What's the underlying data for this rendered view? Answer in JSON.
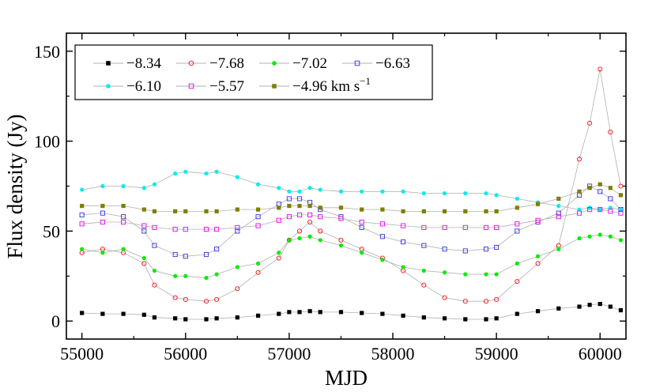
{
  "chart_data": {
    "type": "scatter",
    "xlabel": "MJD",
    "ylabel": "Flux density (Jy)",
    "xlim": [
      54850,
      60250
    ],
    "ylim": [
      -10,
      160
    ],
    "x_ticks": [
      55000,
      56000,
      57000,
      58000,
      59000,
      60000
    ],
    "y_ticks": [
      0,
      50,
      100,
      150
    ],
    "grid": false,
    "legend_position": "top-left",
    "legend_unit": "km s",
    "legend_unit_sup": "−1",
    "series": [
      {
        "name": "−8.34",
        "color": "#000000",
        "marker": "filled-square",
        "x": [
          55000,
          55200,
          55400,
          55600,
          55700,
          55900,
          56000,
          56200,
          56300,
          56500,
          56700,
          56900,
          57000,
          57100,
          57200,
          57300,
          57500,
          57700,
          57900,
          58100,
          58300,
          58500,
          58700,
          58900,
          59000,
          59200,
          59400,
          59600,
          59800,
          59900,
          60000,
          60100,
          60200
        ],
        "values": [
          4.5,
          4,
          4,
          3.5,
          2,
          1.5,
          1,
          1,
          1.5,
          2,
          3,
          4,
          5,
          5,
          5.5,
          5,
          5,
          4.5,
          4,
          3,
          2,
          1.5,
          1,
          1,
          1.5,
          4,
          5.5,
          7,
          8,
          9,
          9.5,
          8,
          6
        ]
      },
      {
        "name": "−7.68",
        "color": "#ee1111",
        "marker": "open-circle",
        "x": [
          55000,
          55200,
          55400,
          55600,
          55700,
          55900,
          56000,
          56200,
          56300,
          56500,
          56700,
          56900,
          57000,
          57100,
          57200,
          57300,
          57500,
          57700,
          57900,
          58100,
          58300,
          58500,
          58700,
          58900,
          59000,
          59200,
          59400,
          59600,
          59800,
          59900,
          60000,
          60100,
          60200
        ],
        "values": [
          38,
          40,
          38,
          32,
          20,
          13,
          12,
          11,
          12,
          18,
          27,
          35,
          45,
          50,
          55,
          50,
          45,
          40,
          35,
          28,
          20,
          13,
          11,
          11,
          12,
          22,
          32,
          42,
          90,
          110,
          140,
          105,
          75
        ]
      },
      {
        "name": "−7.02",
        "color": "#00ee00",
        "marker": "filled-circle",
        "x": [
          55000,
          55200,
          55400,
          55600,
          55700,
          55900,
          56000,
          56200,
          56300,
          56500,
          56700,
          56900,
          57000,
          57100,
          57200,
          57300,
          57500,
          57700,
          57900,
          58100,
          58300,
          58500,
          58700,
          58900,
          59000,
          59200,
          59400,
          59600,
          59800,
          59900,
          60000,
          60100,
          60200
        ],
        "values": [
          40,
          38,
          40,
          35,
          28,
          25,
          25,
          24,
          26,
          30,
          32,
          38,
          45,
          46,
          47,
          45,
          42,
          38,
          34,
          30,
          28,
          27,
          26,
          26,
          26,
          32,
          36,
          40,
          46,
          47,
          48,
          47,
          45
        ]
      },
      {
        "name": "−6.63",
        "color": "#3333dd",
        "marker": "open-square",
        "x": [
          55000,
          55200,
          55400,
          55600,
          55700,
          55900,
          56000,
          56200,
          56300,
          56500,
          56700,
          56900,
          57000,
          57100,
          57200,
          57300,
          57500,
          57700,
          57900,
          58100,
          58300,
          58500,
          58700,
          58900,
          59000,
          59200,
          59400,
          59600,
          59800,
          59900,
          60000,
          60100,
          60200
        ],
        "values": [
          59,
          60,
          58,
          50,
          42,
          37,
          36,
          37,
          40,
          50,
          58,
          65,
          68,
          68,
          66,
          62,
          58,
          52,
          47,
          44,
          42,
          40,
          39,
          40,
          41,
          50,
          55,
          60,
          70,
          75,
          72,
          68,
          62
        ]
      },
      {
        "name": "−6.10",
        "color": "#00eeee",
        "marker": "filled-circle",
        "x": [
          55000,
          55200,
          55400,
          55600,
          55700,
          55900,
          56000,
          56200,
          56300,
          56500,
          56700,
          56900,
          57000,
          57100,
          57200,
          57300,
          57500,
          57700,
          57900,
          58100,
          58300,
          58500,
          58700,
          58900,
          59000,
          59200,
          59400,
          59600,
          59800,
          59900,
          60000,
          60100,
          60200
        ],
        "values": [
          73,
          75,
          75,
          74,
          76,
          82,
          83,
          82,
          83,
          80,
          76,
          74,
          72,
          72,
          74,
          73,
          72,
          72,
          72,
          72,
          71,
          71,
          71,
          71,
          70,
          68,
          66,
          64,
          62,
          63,
          62,
          63,
          62
        ]
      },
      {
        "name": "−5.57",
        "color": "#ee00ee",
        "marker": "open-square",
        "x": [
          55000,
          55200,
          55400,
          55600,
          55700,
          55900,
          56000,
          56200,
          56300,
          56500,
          56700,
          56900,
          57000,
          57100,
          57200,
          57300,
          57500,
          57700,
          57900,
          58100,
          58300,
          58500,
          58700,
          58900,
          59000,
          59200,
          59400,
          59600,
          59800,
          59900,
          60000,
          60100,
          60200
        ],
        "values": [
          54,
          55,
          55,
          53,
          52,
          51,
          51,
          51,
          51,
          52,
          53,
          56,
          58,
          59,
          59,
          58,
          57,
          55,
          54,
          53,
          52,
          52,
          52,
          52,
          52,
          54,
          56,
          58,
          60,
          62,
          62,
          61,
          60
        ]
      },
      {
        "name": "−4.96",
        "color": "#7f7f00",
        "marker": "filled-square",
        "x": [
          55000,
          55200,
          55400,
          55600,
          55700,
          55900,
          56000,
          56200,
          56300,
          56500,
          56700,
          56900,
          57000,
          57100,
          57200,
          57300,
          57500,
          57700,
          57900,
          58100,
          58300,
          58500,
          58700,
          58900,
          59000,
          59200,
          59400,
          59600,
          59800,
          59900,
          60000,
          60100,
          60200
        ],
        "values": [
          64,
          64,
          64,
          62,
          61,
          61,
          61,
          61,
          61,
          62,
          62,
          63,
          64,
          64,
          64,
          63,
          63,
          62,
          62,
          61,
          61,
          61,
          61,
          61,
          61,
          63,
          65,
          68,
          72,
          74,
          76,
          74,
          70
        ]
      }
    ]
  }
}
